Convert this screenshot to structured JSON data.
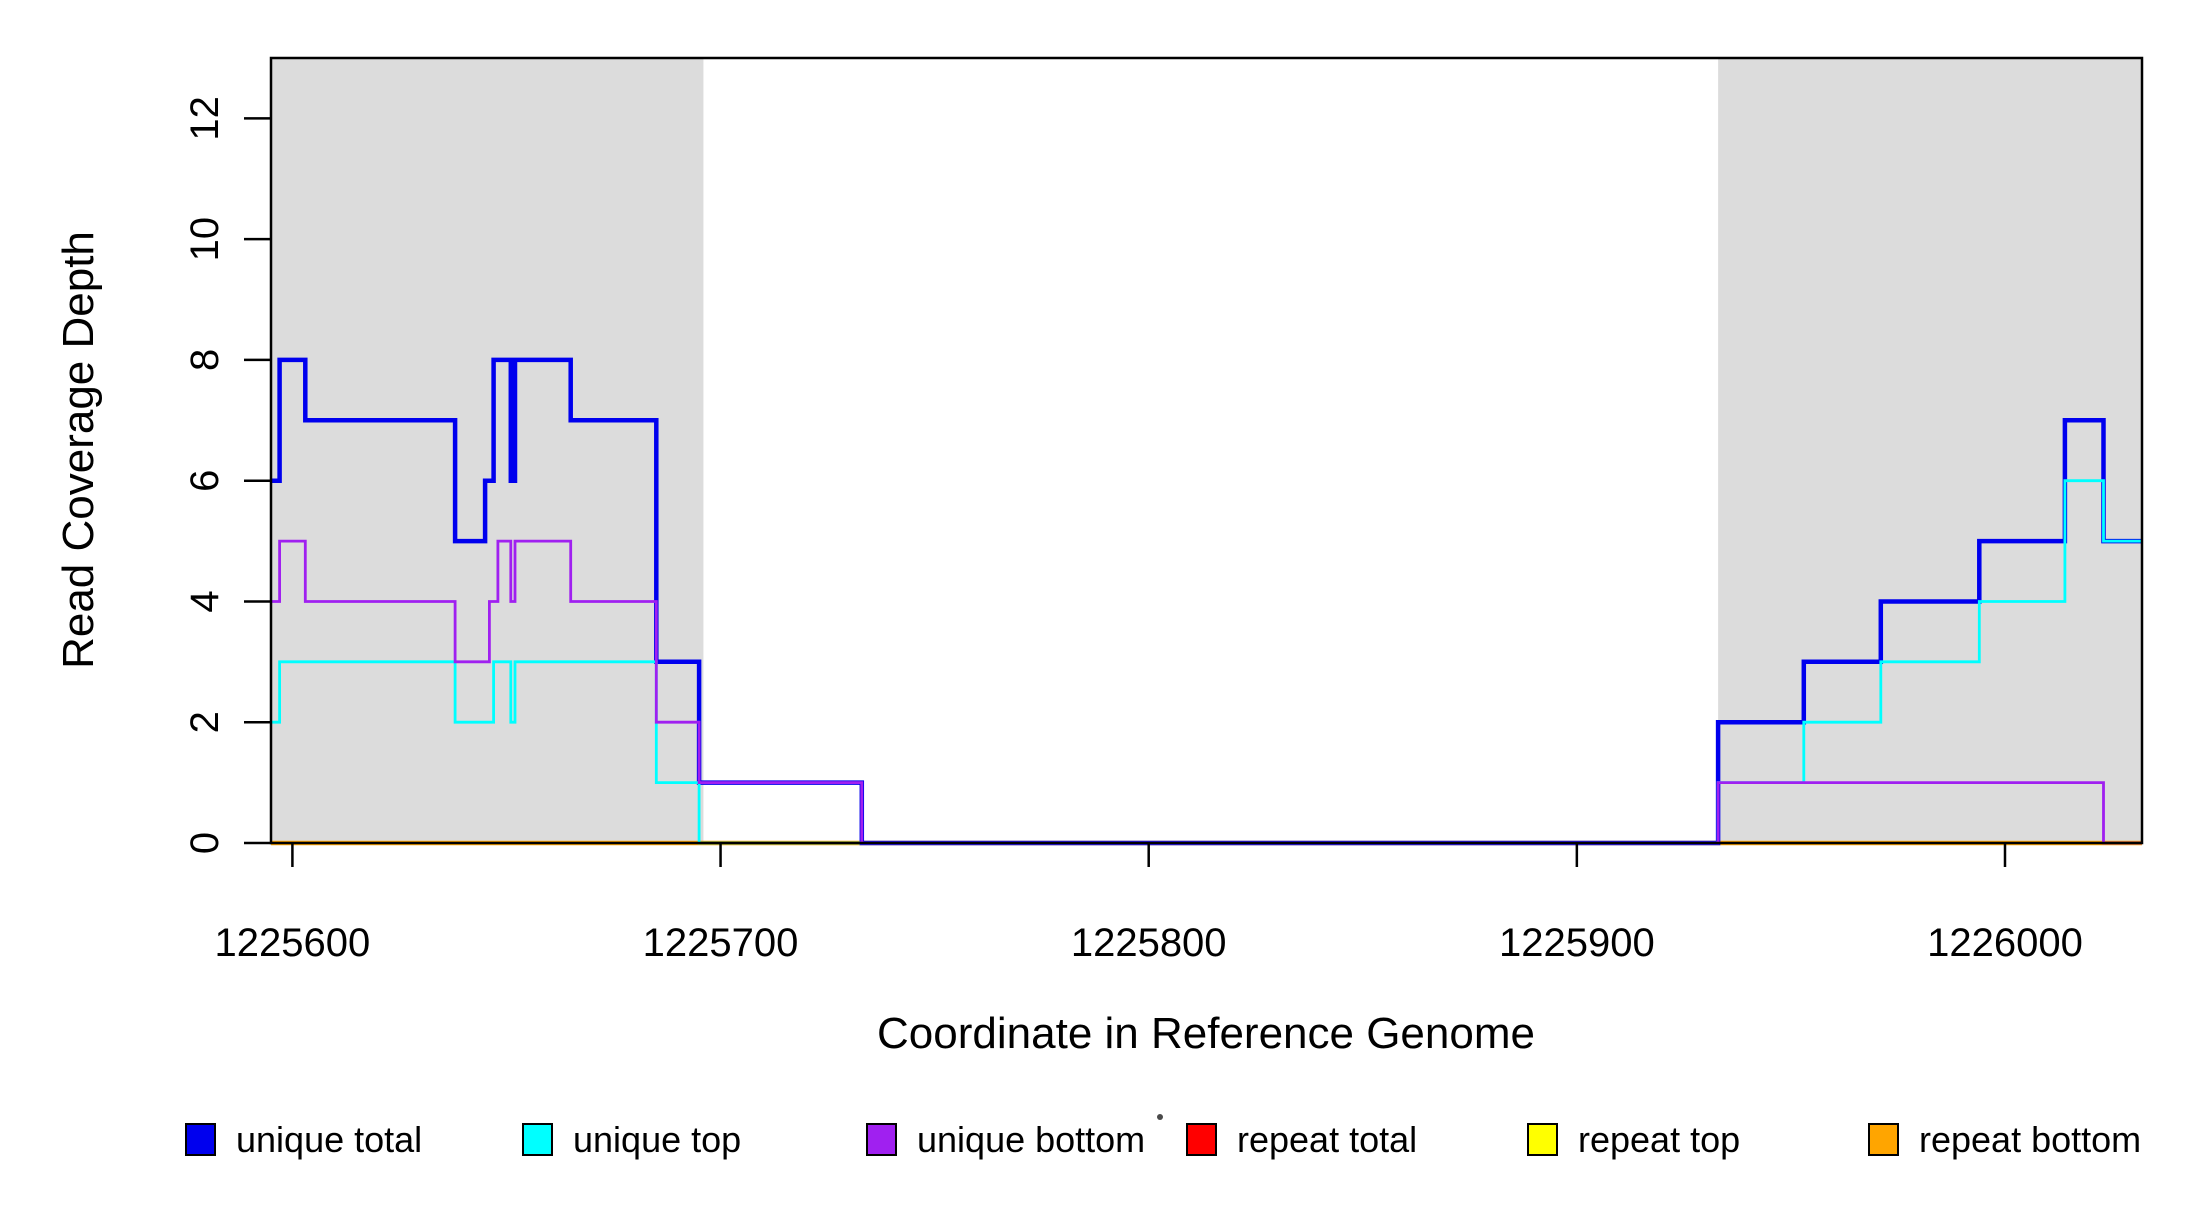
{
  "chart_data": {
    "type": "line",
    "subtype": "step-coverage-plot",
    "title": "",
    "xlabel": "Coordinate in Reference Genome",
    "ylabel": "Read Coverage Depth",
    "xlim": [
      1225595,
      1226032
    ],
    "ylim": [
      0,
      13
    ],
    "x_ticks": [
      1225600,
      1225700,
      1225800,
      1225900,
      1226000
    ],
    "y_ticks": [
      0,
      2,
      4,
      6,
      8,
      10,
      12
    ],
    "grid": false,
    "background_color": "#ffffff",
    "shaded_regions": [
      {
        "name": "target-region-left",
        "start": 1225595,
        "end": 1225696,
        "color": "#DCDCDC"
      },
      {
        "name": "target-region-right",
        "start": 1225933,
        "end": 1226032,
        "color": "#DCDCDC"
      }
    ],
    "draw_order": [
      "repeat total",
      "repeat top",
      "repeat bottom",
      "unique total",
      "unique top",
      "unique bottom"
    ],
    "series": [
      {
        "name": "unique total",
        "color": "#0000EE",
        "linewidth": 4.5,
        "points": [
          [
            1225595,
            6
          ],
          [
            1225597,
            8
          ],
          [
            1225603,
            7
          ],
          [
            1225638,
            5
          ],
          [
            1225645,
            6
          ],
          [
            1225647,
            8
          ],
          [
            1225651,
            6
          ],
          [
            1225652,
            8
          ],
          [
            1225665,
            7
          ],
          [
            1225685,
            3
          ],
          [
            1225695,
            1
          ],
          [
            1225733,
            0
          ],
          [
            1225933,
            2
          ],
          [
            1225953,
            3
          ],
          [
            1225971,
            4
          ],
          [
            1225994,
            5
          ],
          [
            1226014,
            7
          ],
          [
            1226023,
            5
          ]
        ]
      },
      {
        "name": "unique top",
        "color": "#00FFFF",
        "linewidth": 2.8,
        "points": [
          [
            1225595,
            2
          ],
          [
            1225597,
            3
          ],
          [
            1225638,
            2
          ],
          [
            1225647,
            3
          ],
          [
            1225651,
            2
          ],
          [
            1225652,
            3
          ],
          [
            1225685,
            1
          ],
          [
            1225695,
            0
          ],
          [
            1225933,
            1
          ],
          [
            1225953,
            2
          ],
          [
            1225971,
            3
          ],
          [
            1225994,
            4
          ],
          [
            1226014,
            6
          ],
          [
            1226023,
            5
          ]
        ]
      },
      {
        "name": "unique bottom",
        "color": "#A020F0",
        "linewidth": 2.8,
        "points": [
          [
            1225595,
            4
          ],
          [
            1225597,
            5
          ],
          [
            1225603,
            4
          ],
          [
            1225638,
            3
          ],
          [
            1225646,
            4
          ],
          [
            1225648,
            5
          ],
          [
            1225651,
            4
          ],
          [
            1225652,
            5
          ],
          [
            1225665,
            4
          ],
          [
            1225685,
            2
          ],
          [
            1225695,
            1
          ],
          [
            1225733,
            0
          ],
          [
            1225933,
            1
          ],
          [
            1226023,
            0
          ]
        ]
      },
      {
        "name": "repeat total",
        "color": "#FF0000",
        "linewidth": 2.8,
        "points": [
          [
            1225595,
            0
          ]
        ]
      },
      {
        "name": "repeat top",
        "color": "#FFFF00",
        "linewidth": 2.8,
        "points": [
          [
            1225595,
            0
          ]
        ]
      },
      {
        "name": "repeat bottom",
        "color": "#FFA500",
        "linewidth": 4.5,
        "points": [
          [
            1225595,
            0
          ]
        ]
      }
    ],
    "legend": {
      "position": "bottom",
      "items": [
        {
          "label": "unique total",
          "color": "#0000EE"
        },
        {
          "label": "unique top",
          "color": "#00FFFF"
        },
        {
          "label": "unique bottom",
          "color": "#A020F0"
        },
        {
          "label": "repeat total",
          "color": "#FF0000"
        },
        {
          "label": "repeat top",
          "color": "#FFFF00"
        },
        {
          "label": "repeat bottom",
          "color": "#FFA500"
        }
      ],
      "stray_mark": "."
    },
    "axis_color": "#000000"
  }
}
